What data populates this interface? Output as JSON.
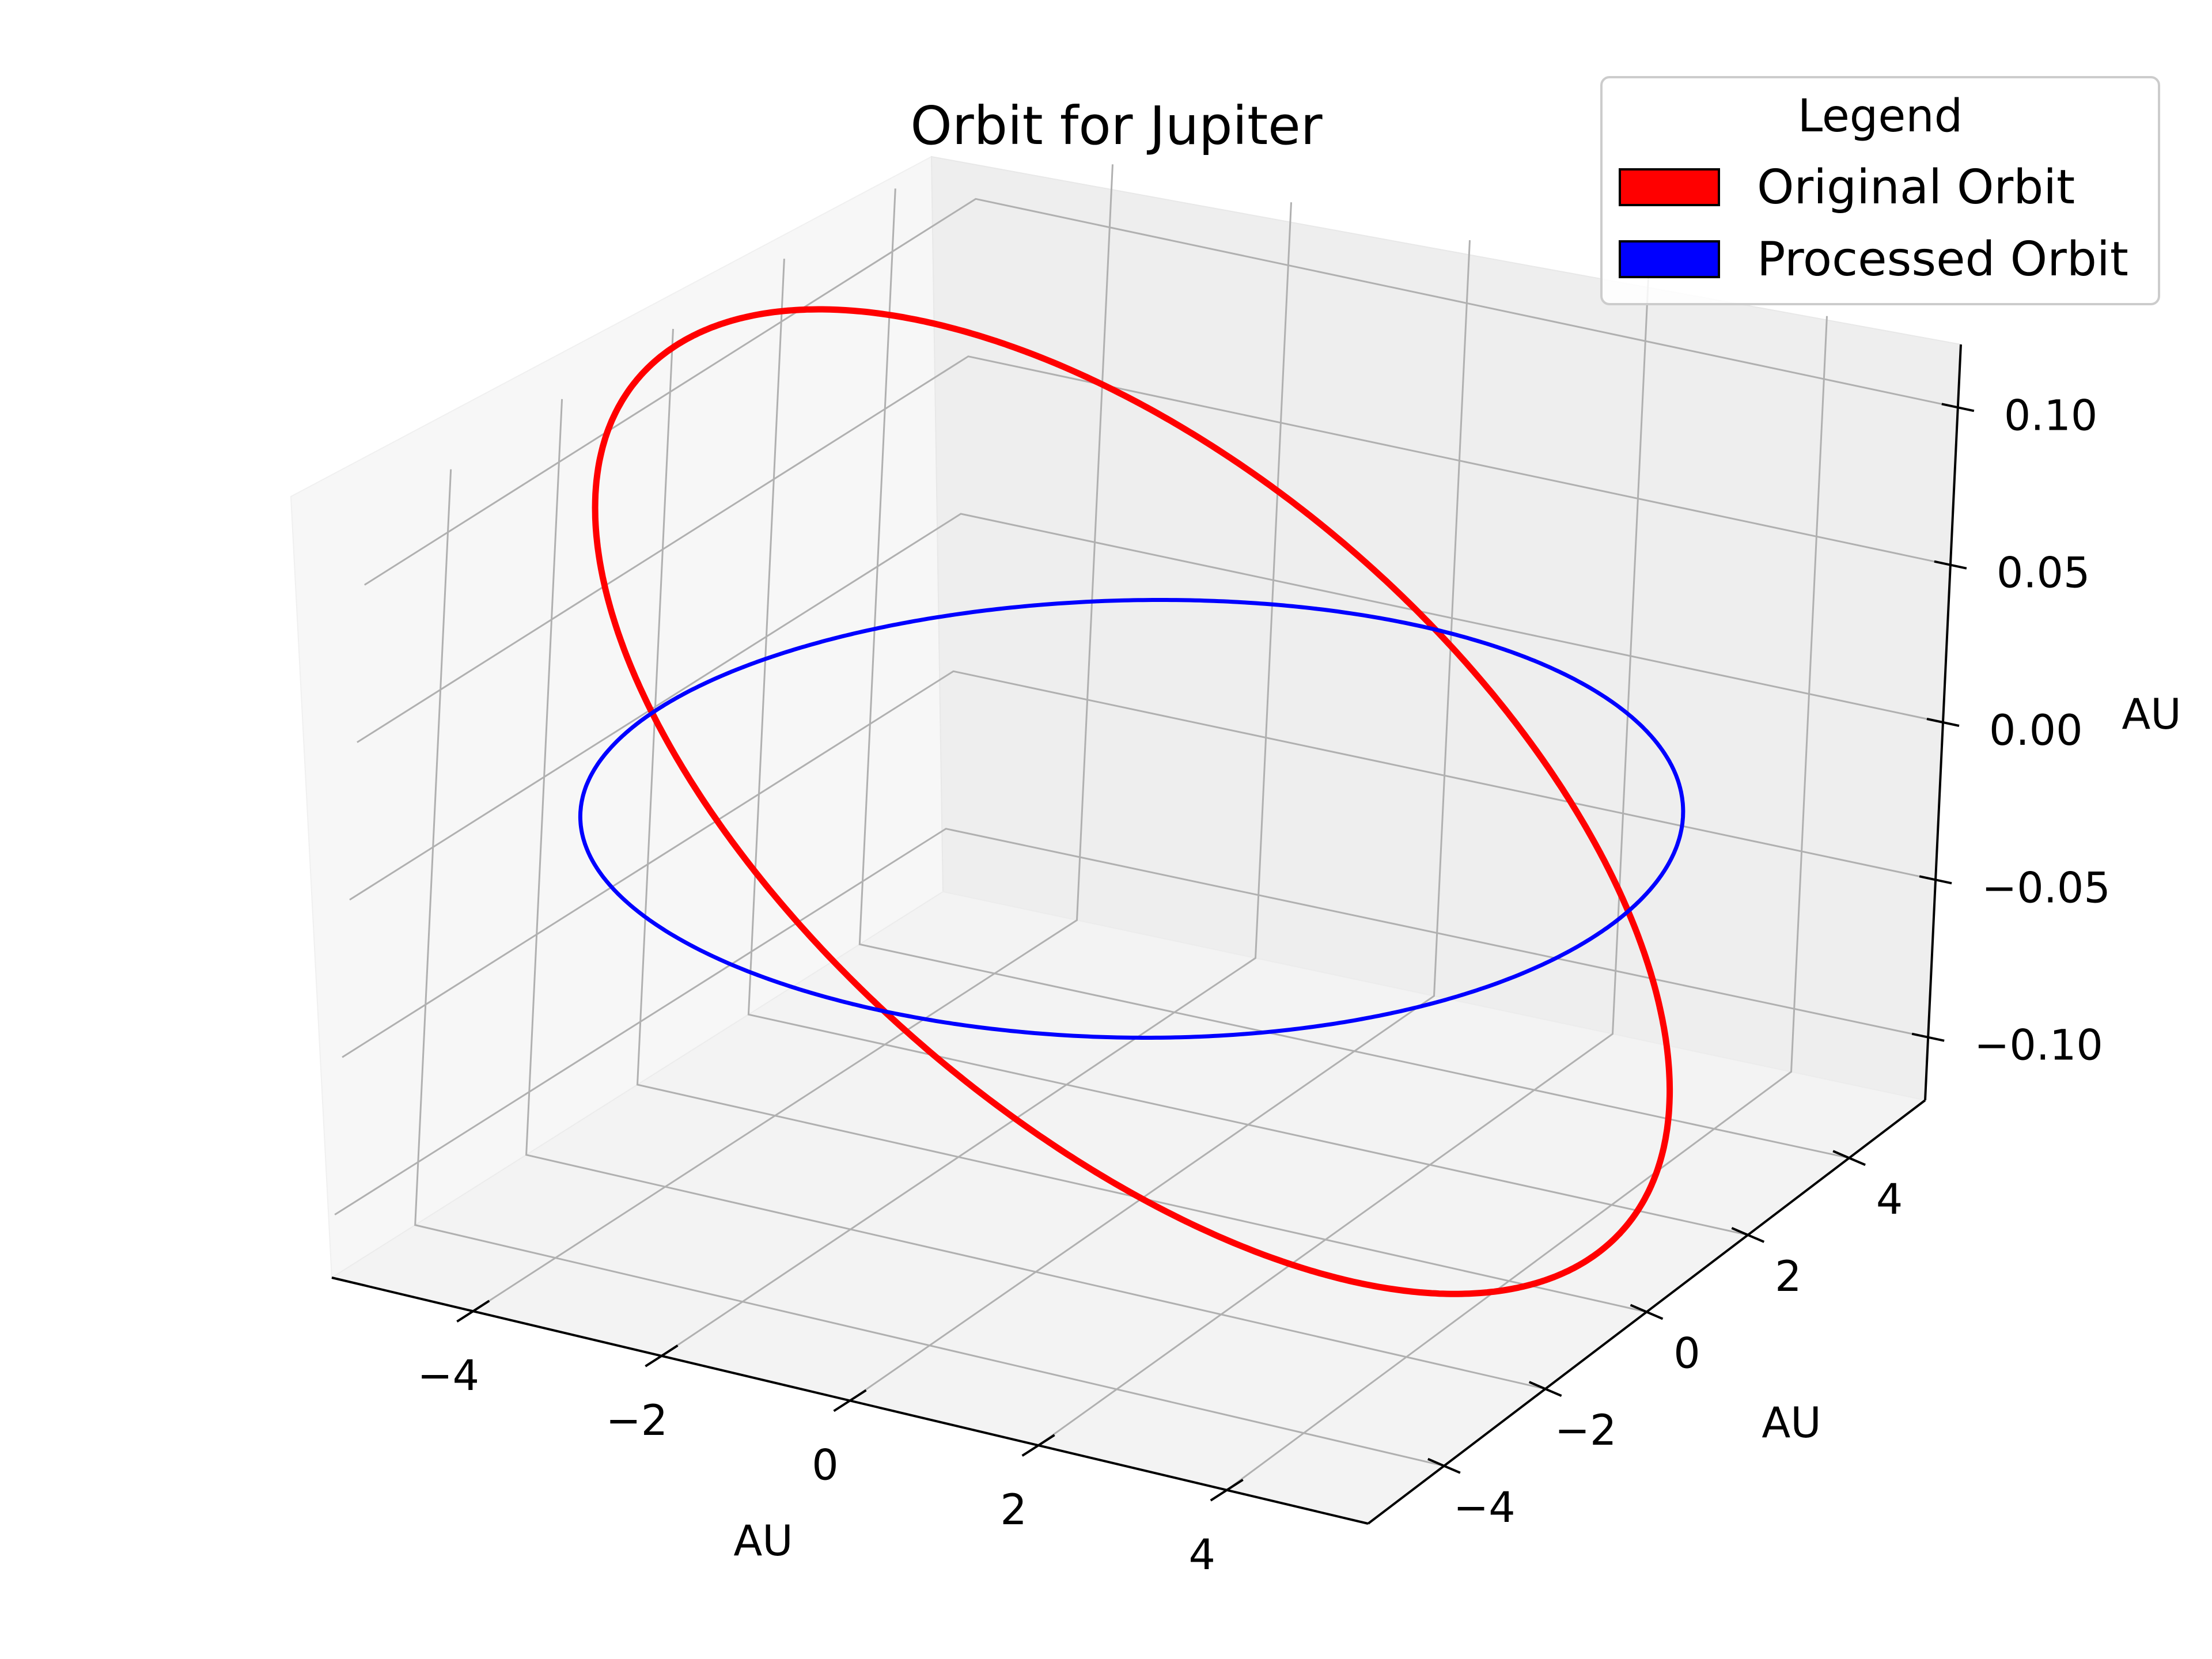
{
  "chart_data": {
    "type": "line",
    "projection": "3d",
    "title": "Orbit for Jupiter",
    "xlabel": "AU",
    "ylabel": "AU",
    "zlabel": "AU",
    "xlim": [
      -5.5,
      5.5
    ],
    "ylim": [
      -5.5,
      5.5
    ],
    "zlim": [
      -0.12,
      0.12
    ],
    "x_ticks": [
      -4,
      -2,
      0,
      2,
      4
    ],
    "y_ticks": [
      -4,
      -2,
      0,
      2,
      4
    ],
    "z_ticks": [
      -0.1,
      -0.05,
      0.0,
      0.05,
      0.1
    ],
    "x_tick_labels": [
      "−4",
      "−2",
      "0",
      "2",
      "4"
    ],
    "y_tick_labels": [
      "−4",
      "−2",
      "0",
      "2",
      "4"
    ],
    "z_tick_labels": [
      "−0.10",
      "−0.05",
      "0.00",
      "0.05",
      "0.10"
    ],
    "grid": true,
    "series": [
      {
        "name": "Original Orbit",
        "color": "#ff0000",
        "semi_major_axis": 5.2,
        "eccentricity": 0.048,
        "z_amplitude": 0.11,
        "inclined": true
      },
      {
        "name": "Processed Orbit",
        "color": "#0000ff",
        "semi_major_axis": 5.2,
        "eccentricity": 0.048,
        "z_amplitude": 0.0,
        "inclined": false
      }
    ],
    "legend": {
      "title": "Legend",
      "placement": "top-right"
    }
  }
}
